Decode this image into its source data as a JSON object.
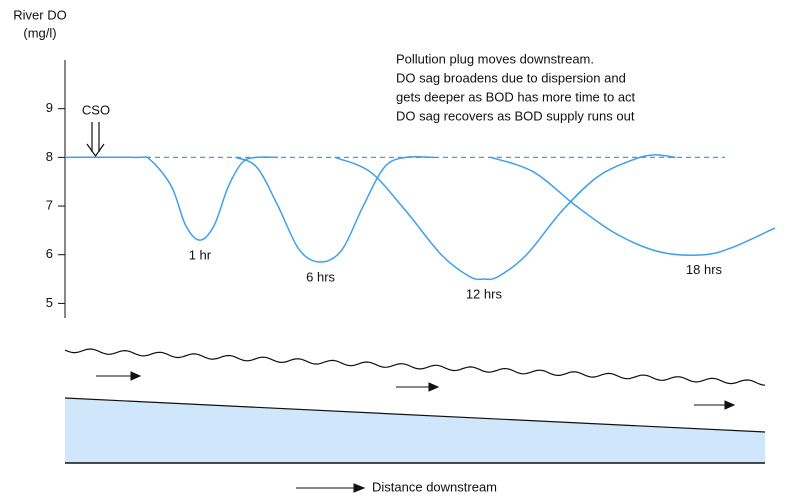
{
  "chart_data": {
    "type": "line",
    "y_label": [
      "River DO",
      "(mg/l)"
    ],
    "marker_label": "CSO",
    "annotation": [
      "Pollution plug moves downstream.",
      "DO sag broadens due to dispersion and",
      "gets deeper as BOD has more time to act",
      "DO sag recovers as BOD supply runs out"
    ],
    "x_label": "Distance downstream",
    "xlim": [
      0,
      100
    ],
    "ylim": [
      4.7,
      10
    ],
    "yticks": [
      5,
      6,
      7,
      8,
      9
    ],
    "reference_line": 8,
    "color": "#3fa0ea",
    "series": [
      {
        "name": "1 hr",
        "x": [
          0,
          10,
          12,
          15,
          17,
          19,
          21,
          23,
          25,
          27,
          30
        ],
        "values": [
          8,
          8,
          7.95,
          7.4,
          6.6,
          6.3,
          6.6,
          7.4,
          7.9,
          8,
          8
        ]
      },
      {
        "name": "6 hrs",
        "x": [
          24,
          27,
          30,
          33,
          36,
          39,
          42,
          45,
          48,
          52
        ],
        "values": [
          8,
          7.8,
          7.0,
          6.1,
          5.85,
          6.1,
          7.0,
          7.8,
          8,
          8
        ]
      },
      {
        "name": "12 hrs",
        "x": [
          38,
          43,
          48,
          53,
          57,
          59,
          61,
          65,
          70,
          75,
          80,
          83,
          86
        ],
        "values": [
          8,
          7.7,
          6.9,
          6.0,
          5.55,
          5.5,
          5.55,
          6.0,
          6.9,
          7.6,
          7.95,
          8.05,
          8.0
        ]
      },
      {
        "name": "18 hrs",
        "x": [
          60,
          66,
          72,
          78,
          84,
          90,
          94,
          100
        ],
        "values": [
          8,
          7.7,
          7.0,
          6.4,
          6.05,
          6.0,
          6.15,
          6.55
        ]
      }
    ]
  }
}
